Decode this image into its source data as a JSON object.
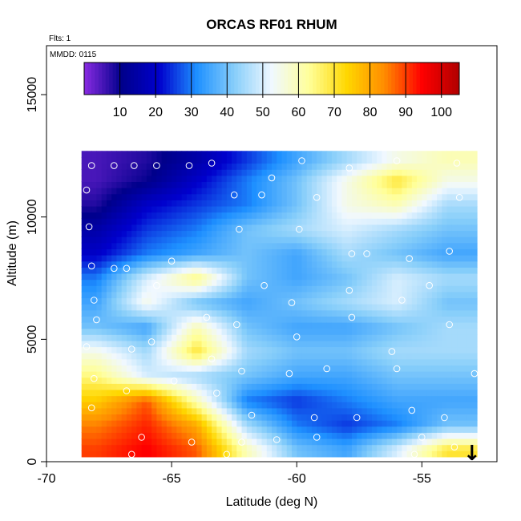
{
  "chart_data": {
    "type": "heatmap",
    "title": "ORCAS RF01 RHUM",
    "annotations": [
      "Flts: 1",
      "MMDD: 0115"
    ],
    "xlabel": "Latitude (deg N)",
    "ylabel": "Altitude (m)",
    "xlim": [
      -70,
      -52
    ],
    "ylim": [
      0,
      17000
    ],
    "xticks": [
      -70,
      -65,
      -60,
      -55
    ],
    "xtick_labels": [
      "-70",
      "-65",
      "-60",
      "-55"
    ],
    "yticks": [
      0,
      5000,
      10000,
      15000
    ],
    "ytick_labels": [
      "0",
      "5000",
      "10000",
      "15000"
    ],
    "colorbar": {
      "range": [
        0,
        105
      ],
      "ticks": [
        10,
        20,
        30,
        40,
        50,
        60,
        70,
        80,
        90,
        100
      ],
      "tick_labels": [
        "10",
        "20",
        "30",
        "40",
        "50",
        "60",
        "70",
        "80",
        "90",
        "100"
      ],
      "colors": [
        "#8a2be2",
        "#00008b",
        "#0000cd",
        "#1e90ff",
        "#87cefa",
        "#f0f8ff",
        "#ffff99",
        "#ffd700",
        "#ff8c00",
        "#ff0000",
        "#b00000"
      ]
    },
    "data_extent": {
      "lat": [
        -68.6,
        -52.8
      ],
      "alt": [
        200,
        12500
      ]
    },
    "grid": {
      "lat": [
        -68.0,
        -66.0,
        -64.0,
        -62.0,
        -60.0,
        -58.0,
        -56.0,
        -54.0
      ],
      "alt": [
        500,
        1500,
        2500,
        3500,
        4500,
        5500,
        6500,
        7500,
        8500,
        9500,
        10500,
        11500,
        12300
      ],
      "rhum": [
        [
          90,
          95,
          88,
          60,
          40,
          35,
          50,
          70
        ],
        [
          85,
          92,
          80,
          45,
          30,
          25,
          30,
          40
        ],
        [
          75,
          88,
          60,
          30,
          25,
          30,
          35,
          35
        ],
        [
          65,
          50,
          45,
          40,
          35,
          35,
          40,
          40
        ],
        [
          55,
          45,
          70,
          45,
          40,
          40,
          45,
          45
        ],
        [
          40,
          35,
          60,
          40,
          35,
          35,
          40,
          45
        ],
        [
          35,
          55,
          40,
          35,
          40,
          45,
          50,
          40
        ],
        [
          30,
          50,
          65,
          40,
          35,
          40,
          50,
          45
        ],
        [
          20,
          30,
          35,
          40,
          35,
          45,
          40,
          35
        ],
        [
          15,
          25,
          30,
          40,
          45,
          50,
          45,
          40
        ],
        [
          8,
          20,
          25,
          30,
          40,
          55,
          60,
          45
        ],
        [
          5,
          10,
          20,
          30,
          40,
          55,
          70,
          55
        ],
        [
          5,
          8,
          15,
          25,
          35,
          45,
          55,
          60
        ]
      ]
    },
    "sample_points": [
      {
        "lat": -68.2,
        "alt": 12100
      },
      {
        "lat": -67.3,
        "alt": 12100
      },
      {
        "lat": -66.5,
        "alt": 12100
      },
      {
        "lat": -65.6,
        "alt": 12100
      },
      {
        "lat": -64.3,
        "alt": 12100
      },
      {
        "lat": -63.4,
        "alt": 12200
      },
      {
        "lat": -61.0,
        "alt": 11600
      },
      {
        "lat": -59.8,
        "alt": 12300
      },
      {
        "lat": -57.9,
        "alt": 12000
      },
      {
        "lat": -56.0,
        "alt": 12300
      },
      {
        "lat": -53.6,
        "alt": 12200
      },
      {
        "lat": -68.4,
        "alt": 11100
      },
      {
        "lat": -62.5,
        "alt": 10900
      },
      {
        "lat": -61.4,
        "alt": 10900
      },
      {
        "lat": -59.2,
        "alt": 10800
      },
      {
        "lat": -53.5,
        "alt": 10800
      },
      {
        "lat": -68.3,
        "alt": 9600
      },
      {
        "lat": -62.3,
        "alt": 9500
      },
      {
        "lat": -59.9,
        "alt": 9500
      },
      {
        "lat": -57.8,
        "alt": 8500
      },
      {
        "lat": -57.2,
        "alt": 8500
      },
      {
        "lat": -55.5,
        "alt": 8300
      },
      {
        "lat": -53.9,
        "alt": 8600
      },
      {
        "lat": -68.2,
        "alt": 8000
      },
      {
        "lat": -66.8,
        "alt": 7900
      },
      {
        "lat": -67.3,
        "alt": 7900
      },
      {
        "lat": -65.0,
        "alt": 8200
      },
      {
        "lat": -65.6,
        "alt": 7200
      },
      {
        "lat": -61.3,
        "alt": 7200
      },
      {
        "lat": -57.9,
        "alt": 7000
      },
      {
        "lat": -54.7,
        "alt": 7200
      },
      {
        "lat": -68.1,
        "alt": 6600
      },
      {
        "lat": -60.2,
        "alt": 6500
      },
      {
        "lat": -55.8,
        "alt": 6600
      },
      {
        "lat": -68.0,
        "alt": 5800
      },
      {
        "lat": -63.6,
        "alt": 5900
      },
      {
        "lat": -62.4,
        "alt": 5600
      },
      {
        "lat": -57.8,
        "alt": 5900
      },
      {
        "lat": -53.9,
        "alt": 5600
      },
      {
        "lat": -68.4,
        "alt": 4700
      },
      {
        "lat": -66.6,
        "alt": 4600
      },
      {
        "lat": -65.8,
        "alt": 4900
      },
      {
        "lat": -63.4,
        "alt": 4200
      },
      {
        "lat": -60.0,
        "alt": 5100
      },
      {
        "lat": -56.2,
        "alt": 4500
      },
      {
        "lat": -68.1,
        "alt": 3400
      },
      {
        "lat": -64.9,
        "alt": 3300
      },
      {
        "lat": -62.2,
        "alt": 3700
      },
      {
        "lat": -60.3,
        "alt": 3600
      },
      {
        "lat": -58.8,
        "alt": 3800
      },
      {
        "lat": -56.0,
        "alt": 3800
      },
      {
        "lat": -52.9,
        "alt": 3600
      },
      {
        "lat": -68.2,
        "alt": 2200
      },
      {
        "lat": -66.8,
        "alt": 2900
      },
      {
        "lat": -63.2,
        "alt": 2800
      },
      {
        "lat": -61.8,
        "alt": 1900
      },
      {
        "lat": -59.3,
        "alt": 1800
      },
      {
        "lat": -57.6,
        "alt": 1800
      },
      {
        "lat": -55.4,
        "alt": 2100
      },
      {
        "lat": -54.1,
        "alt": 1800
      },
      {
        "lat": -66.2,
        "alt": 1000
      },
      {
        "lat": -64.2,
        "alt": 800
      },
      {
        "lat": -62.2,
        "alt": 800
      },
      {
        "lat": -59.2,
        "alt": 1000
      },
      {
        "lat": -55.0,
        "alt": 1000
      },
      {
        "lat": -53.7,
        "alt": 600
      },
      {
        "lat": -66.6,
        "alt": 300
      },
      {
        "lat": -62.8,
        "alt": 300
      },
      {
        "lat": -60.8,
        "alt": 900
      },
      {
        "lat": -55.3,
        "alt": 300
      }
    ],
    "marker": {
      "symbol": "↓",
      "lat": -53.0
    }
  }
}
